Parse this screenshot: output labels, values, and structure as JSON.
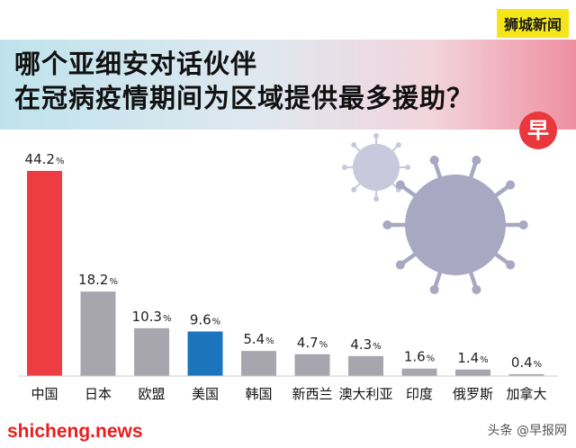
{
  "brand_label": "狮城新闻",
  "title_line1": "哪个亚细安对话伙伴",
  "title_line2": "在冠病疫情期间为区域提供最多援助？",
  "badge_char": "早",
  "footer": {
    "site": "shicheng.news",
    "credit": "头条 @早报网"
  },
  "colors": {
    "highlight_red": "#ee3d42",
    "highlight_blue": "#1c75bc",
    "bar_gray": "#a7a6ae",
    "virus": "#a9a8c3"
  },
  "chart_data": {
    "type": "bar",
    "categories": [
      "中国",
      "日本",
      "欧盟",
      "美国",
      "韩国",
      "新西兰",
      "澳大利亚",
      "印度",
      "俄罗斯",
      "加拿大"
    ],
    "values": [
      44.2,
      18.2,
      10.3,
      9.6,
      5.4,
      4.7,
      4.3,
      1.6,
      1.4,
      0.4
    ],
    "value_labels": [
      "44.2",
      "18.2",
      "10.3",
      "9.6",
      "5.4",
      "4.7",
      "4.3",
      "1.6",
      "1.4",
      "0.4"
    ],
    "unit": "%",
    "bar_colors": [
      "#ee3d42",
      "#a7a6ae",
      "#a7a6ae",
      "#1c75bc",
      "#a7a6ae",
      "#a7a6ae",
      "#a7a6ae",
      "#a7a6ae",
      "#a7a6ae",
      "#a7a6ae"
    ],
    "title": "",
    "xlabel": "",
    "ylabel": "",
    "ylim": [
      0,
      44.2
    ],
    "grid": false,
    "legend": "none"
  }
}
